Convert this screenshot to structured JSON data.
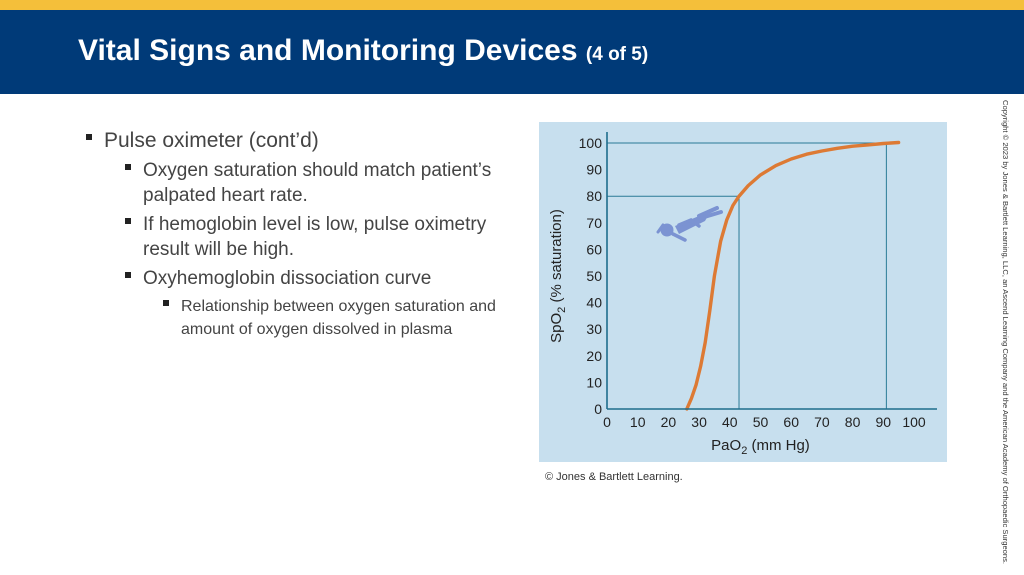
{
  "slide": {
    "title": "Vital Signs and Monitoring Devices",
    "title_suffix": "(4 of 5)",
    "colors": {
      "top_bar": "#f4bf3a",
      "header": "#003a78",
      "curve": "#dd7a34",
      "chart_bg": "#c7dfee",
      "guide": "#2a7a96"
    }
  },
  "bullets": {
    "l1": "Pulse oximeter (cont’d)",
    "l2": [
      "Oxygen saturation should match patient’s palpated heart rate.",
      "If hemoglobin level is low, pulse oximetry result will be high.",
      "Oxyhemoglobin dissociation curve"
    ],
    "l3": "Relationship between oxygen saturation and amount of oxygen dissolved in plasma"
  },
  "chart_data": {
    "type": "line",
    "xlabel_main": "PaO",
    "xlabel_sub": "2",
    "xlabel_tail": " (mm Hg)",
    "ylabel_main": "SpO",
    "ylabel_sub": "2",
    "ylabel_tail": " (% saturation)",
    "xlim": [
      0,
      100
    ],
    "ylim": [
      0,
      100
    ],
    "x_ticks": [
      "0",
      "10",
      "20",
      "30",
      "40",
      "50",
      "60",
      "70",
      "80",
      "90",
      "100"
    ],
    "y_ticks": [
      "0",
      "10",
      "20",
      "30",
      "40",
      "50",
      "60",
      "70",
      "80",
      "90",
      "100"
    ],
    "series": [
      {
        "x": [
          26,
          27.5,
          29,
          30.5,
          32,
          33.5,
          35,
          37,
          39,
          41,
          43,
          46,
          50,
          55,
          60,
          65,
          70,
          75,
          80,
          85,
          90,
          95
        ],
        "values": [
          0,
          4,
          9,
          16,
          25,
          37,
          50,
          63,
          71,
          76.5,
          80,
          84,
          88,
          91.5,
          94,
          95.8,
          97,
          98,
          98.8,
          99.3,
          99.8,
          100.2
        ]
      }
    ],
    "guide_lines": [
      {
        "x": 43,
        "y": 80
      },
      {
        "x": 91,
        "y": 100
      }
    ],
    "icon": "reclining-patient-figure"
  },
  "credit": "© Jones & Bartlett Learning.",
  "copyright": "Copyright © 2023 by Jones & Bartlett Learning, LLC, an Ascend Learning Company and the American Academy of Orthopaedic Surgeons."
}
